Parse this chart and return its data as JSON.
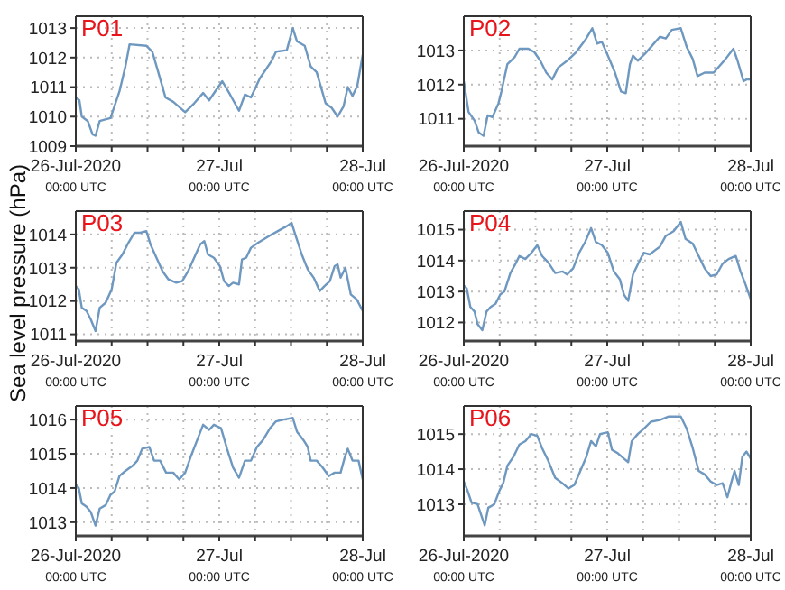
{
  "chart_data": [
    {
      "type": "line",
      "title": "P01",
      "color": "#6e98c0",
      "grid": true,
      "xlim": [
        "2020-07-26T00:00",
        "2020-07-28T00:00"
      ],
      "xticks": [
        {
          "value": "2020-07-26T00:00",
          "label": "26-Jul-2020\n00:00 UTC"
        },
        {
          "value": "2020-07-26T06:00",
          "label": null
        },
        {
          "value": "2020-07-26T12:00",
          "label": null
        },
        {
          "value": "2020-07-26T18:00",
          "label": null
        },
        {
          "value": "2020-07-27T00:00",
          "label": "27-Jul\n00:00 UTC"
        },
        {
          "value": "2020-07-27T06:00",
          "label": null
        },
        {
          "value": "2020-07-27T12:00",
          "label": null
        },
        {
          "value": "2020-07-27T18:00",
          "label": null
        },
        {
          "value": "2020-07-28T00:00",
          "label": "28-Jul\n00:00 UTC"
        }
      ],
      "ylim": [
        1009,
        1013.4
      ],
      "yticks": [
        1009,
        1010,
        1011,
        1012,
        1013
      ],
      "x": [
        "2020-07-26T00:00",
        "2020-07-26T00:36",
        "2020-07-26T01:00",
        "2020-07-26T02:00",
        "2020-07-26T02:48",
        "2020-07-26T03:18",
        "2020-07-26T04:00",
        "2020-07-26T04:48",
        "2020-07-26T05:48",
        "2020-07-26T07:18",
        "2020-07-26T08:18",
        "2020-07-26T09:00",
        "2020-07-26T11:48",
        "2020-07-26T12:48",
        "2020-07-26T13:48",
        "2020-07-26T15:00",
        "2020-07-26T16:18",
        "2020-07-26T18:18",
        "2020-07-26T19:48",
        "2020-07-26T21:18",
        "2020-07-26T22:18",
        "2020-07-26T23:18",
        "2020-07-27T00:30",
        "2020-07-27T01:48",
        "2020-07-27T03:18",
        "2020-07-27T04:18",
        "2020-07-27T05:18",
        "2020-07-27T06:48",
        "2020-07-27T08:48",
        "2020-07-27T09:30",
        "2020-07-27T11:18",
        "2020-07-27T12:18",
        "2020-07-27T13:00",
        "2020-07-27T14:18",
        "2020-07-27T15:18",
        "2020-07-27T16:18",
        "2020-07-27T17:48",
        "2020-07-27T18:48",
        "2020-07-27T19:48",
        "2020-07-27T20:48",
        "2020-07-27T21:30",
        "2020-07-27T22:18",
        "2020-07-27T23:06",
        "2020-07-28T00:00"
      ],
      "values": [
        1010.65,
        1010.55,
        1010.0,
        1009.85,
        1009.4,
        1009.35,
        1009.85,
        1009.9,
        1009.95,
        1010.85,
        1011.7,
        1012.45,
        1012.4,
        1012.2,
        1011.5,
        1010.65,
        1010.5,
        1010.15,
        1010.45,
        1010.8,
        1010.55,
        1010.85,
        1011.2,
        1010.75,
        1010.2,
        1010.75,
        1010.65,
        1011.3,
        1011.9,
        1012.2,
        1012.25,
        1013.0,
        1012.55,
        1012.4,
        1011.7,
        1011.5,
        1010.45,
        1010.3,
        1010.0,
        1010.35,
        1011.0,
        1010.7,
        1011.05,
        1012.1
      ]
    },
    {
      "type": "line",
      "title": "P02",
      "color": "#6e98c0",
      "grid": true,
      "xlim": [
        "2020-07-26T00:00",
        "2020-07-28T00:00"
      ],
      "xticks": [
        {
          "value": "2020-07-26T00:00",
          "label": "26-Jul-2020\n00:00 UTC"
        },
        {
          "value": "2020-07-26T06:00",
          "label": null
        },
        {
          "value": "2020-07-26T12:00",
          "label": null
        },
        {
          "value": "2020-07-26T18:00",
          "label": null
        },
        {
          "value": "2020-07-27T00:00",
          "label": "27-Jul\n00:00 UTC"
        },
        {
          "value": "2020-07-27T06:00",
          "label": null
        },
        {
          "value": "2020-07-27T12:00",
          "label": null
        },
        {
          "value": "2020-07-27T18:00",
          "label": null
        },
        {
          "value": "2020-07-28T00:00",
          "label": "28-Jul\n00:00 UTC"
        }
      ],
      "ylim": [
        1010.2,
        1014
      ],
      "yticks": [
        1011,
        1012,
        1013
      ],
      "x": [
        "2020-07-26T00:00",
        "2020-07-26T00:48",
        "2020-07-26T01:48",
        "2020-07-26T02:30",
        "2020-07-26T03:18",
        "2020-07-26T04:00",
        "2020-07-26T04:48",
        "2020-07-26T05:48",
        "2020-07-26T06:18",
        "2020-07-26T07:18",
        "2020-07-26T08:30",
        "2020-07-26T09:18",
        "2020-07-26T10:48",
        "2020-07-26T11:48",
        "2020-07-26T12:48",
        "2020-07-26T13:48",
        "2020-07-26T14:48",
        "2020-07-26T15:48",
        "2020-07-26T17:18",
        "2020-07-26T18:48",
        "2020-07-26T20:18",
        "2020-07-26T21:30",
        "2020-07-26T22:18",
        "2020-07-26T23:06",
        "2020-07-27T00:06",
        "2020-07-27T01:18",
        "2020-07-27T02:18",
        "2020-07-27T03:06",
        "2020-07-27T03:48",
        "2020-07-27T04:18",
        "2020-07-27T05:06",
        "2020-07-27T06:18",
        "2020-07-27T07:18",
        "2020-07-27T08:48",
        "2020-07-27T09:48",
        "2020-07-27T10:48",
        "2020-07-27T12:18",
        "2020-07-27T13:18",
        "2020-07-27T14:18",
        "2020-07-27T15:06",
        "2020-07-27T16:18",
        "2020-07-27T17:48",
        "2020-07-27T18:48",
        "2020-07-27T19:48",
        "2020-07-27T21:06",
        "2020-07-27T21:48",
        "2020-07-27T22:48",
        "2020-07-27T23:18",
        "2020-07-28T00:00"
      ],
      "values": [
        1012.1,
        1011.2,
        1010.95,
        1010.6,
        1010.5,
        1011.1,
        1011.05,
        1011.45,
        1011.8,
        1012.6,
        1012.8,
        1013.05,
        1013.05,
        1012.95,
        1012.7,
        1012.35,
        1012.15,
        1012.5,
        1012.7,
        1012.95,
        1013.3,
        1013.65,
        1013.2,
        1013.25,
        1012.85,
        1012.35,
        1011.8,
        1011.75,
        1012.6,
        1012.85,
        1012.7,
        1012.9,
        1013.1,
        1013.4,
        1013.35,
        1013.6,
        1013.65,
        1013.1,
        1012.75,
        1012.25,
        1012.35,
        1012.35,
        1012.55,
        1012.75,
        1013.05,
        1012.7,
        1012.1,
        1012.15,
        1012.15
      ]
    },
    {
      "type": "line",
      "title": "P03",
      "ylabel": "Sea level pressure (hPa)",
      "color": "#6e98c0",
      "grid": true,
      "xlim": [
        "2020-07-26T00:00",
        "2020-07-28T00:00"
      ],
      "xticks": [
        {
          "value": "2020-07-26T00:00",
          "label": "26-Jul-2020\n00:00 UTC"
        },
        {
          "value": "2020-07-26T06:00",
          "label": null
        },
        {
          "value": "2020-07-26T12:00",
          "label": null
        },
        {
          "value": "2020-07-26T18:00",
          "label": null
        },
        {
          "value": "2020-07-27T00:00",
          "label": "27-Jul\n00:00 UTC"
        },
        {
          "value": "2020-07-27T06:00",
          "label": null
        },
        {
          "value": "2020-07-27T12:00",
          "label": null
        },
        {
          "value": "2020-07-27T18:00",
          "label": null
        },
        {
          "value": "2020-07-28T00:00",
          "label": "28-Jul\n00:00 UTC"
        }
      ],
      "ylim": [
        1010.8,
        1014.7
      ],
      "yticks": [
        1011,
        1012,
        1013,
        1014
      ],
      "x": [
        "2020-07-26T00:00",
        "2020-07-26T00:30",
        "2020-07-26T01:00",
        "2020-07-26T01:48",
        "2020-07-26T02:30",
        "2020-07-26T03:18",
        "2020-07-26T04:00",
        "2020-07-26T05:00",
        "2020-07-26T06:00",
        "2020-07-26T06:48",
        "2020-07-26T07:48",
        "2020-07-26T08:48",
        "2020-07-26T09:48",
        "2020-07-26T10:48",
        "2020-07-26T11:48",
        "2020-07-26T12:30",
        "2020-07-26T13:30",
        "2020-07-26T14:30",
        "2020-07-26T15:30",
        "2020-07-26T16:48",
        "2020-07-26T17:48",
        "2020-07-26T18:48",
        "2020-07-26T19:48",
        "2020-07-26T20:48",
        "2020-07-26T21:30",
        "2020-07-26T22:06",
        "2020-07-26T23:06",
        "2020-07-27T00:06",
        "2020-07-27T00:48",
        "2020-07-27T01:36",
        "2020-07-27T02:18",
        "2020-07-27T03:18",
        "2020-07-27T03:48",
        "2020-07-27T04:30",
        "2020-07-27T05:18",
        "2020-07-27T06:30",
        "2020-07-27T08:18",
        "2020-07-27T09:48",
        "2020-07-27T11:18",
        "2020-07-27T12:06",
        "2020-07-27T12:48",
        "2020-07-27T13:48",
        "2020-07-27T14:48",
        "2020-07-27T15:48",
        "2020-07-27T16:48",
        "2020-07-27T17:36",
        "2020-07-27T18:30",
        "2020-07-27T19:18",
        "2020-07-27T19:48",
        "2020-07-27T20:18",
        "2020-07-27T21:06",
        "2020-07-27T22:00",
        "2020-07-27T23:00",
        "2020-07-28T00:00"
      ],
      "values": [
        1012.45,
        1012.35,
        1011.8,
        1011.7,
        1011.45,
        1011.1,
        1011.8,
        1011.95,
        1012.35,
        1013.15,
        1013.4,
        1013.75,
        1014.05,
        1014.05,
        1014.1,
        1013.7,
        1013.3,
        1012.9,
        1012.65,
        1012.55,
        1012.6,
        1012.9,
        1013.3,
        1013.7,
        1013.8,
        1013.4,
        1013.3,
        1013.05,
        1012.6,
        1012.45,
        1012.55,
        1012.5,
        1013.25,
        1013.3,
        1013.6,
        1013.75,
        1013.95,
        1014.1,
        1014.25,
        1014.35,
        1013.95,
        1013.4,
        1012.95,
        1012.7,
        1012.3,
        1012.45,
        1012.6,
        1013.05,
        1013.1,
        1012.7,
        1013.0,
        1012.2,
        1012.05,
        1011.7
      ]
    },
    {
      "type": "line",
      "title": "P04",
      "color": "#6e98c0",
      "grid": true,
      "xlim": [
        "2020-07-26T00:00",
        "2020-07-28T00:00"
      ],
      "xticks": [
        {
          "value": "2020-07-26T00:00",
          "label": "26-Jul-2020\n00:00 UTC"
        },
        {
          "value": "2020-07-26T06:00",
          "label": null
        },
        {
          "value": "2020-07-26T12:00",
          "label": null
        },
        {
          "value": "2020-07-26T18:00",
          "label": null
        },
        {
          "value": "2020-07-27T00:00",
          "label": "27-Jul\n00:00 UTC"
        },
        {
          "value": "2020-07-27T06:00",
          "label": null
        },
        {
          "value": "2020-07-27T12:00",
          "label": null
        },
        {
          "value": "2020-07-27T18:00",
          "label": null
        },
        {
          "value": "2020-07-28T00:00",
          "label": "28-Jul\n00:00 UTC"
        }
      ],
      "ylim": [
        1011.4,
        1015.6
      ],
      "yticks": [
        1012,
        1013,
        1014,
        1015
      ],
      "x": [
        "2020-07-26T00:00",
        "2020-07-26T00:30",
        "2020-07-26T01:06",
        "2020-07-26T01:48",
        "2020-07-26T02:18",
        "2020-07-26T03:06",
        "2020-07-26T03:48",
        "2020-07-26T04:30",
        "2020-07-26T05:18",
        "2020-07-26T06:06",
        "2020-07-26T06:48",
        "2020-07-26T07:48",
        "2020-07-26T08:48",
        "2020-07-26T09:18",
        "2020-07-26T10:18",
        "2020-07-26T11:18",
        "2020-07-26T12:18",
        "2020-07-26T13:06",
        "2020-07-26T14:06",
        "2020-07-26T15:18",
        "2020-07-26T16:30",
        "2020-07-26T17:18",
        "2020-07-26T18:18",
        "2020-07-26T19:18",
        "2020-07-26T20:18",
        "2020-07-26T21:18",
        "2020-07-26T22:06",
        "2020-07-26T23:06",
        "2020-07-27T00:06",
        "2020-07-27T01:06",
        "2020-07-27T02:06",
        "2020-07-27T02:48",
        "2020-07-27T03:30",
        "2020-07-27T04:18",
        "2020-07-27T05:18",
        "2020-07-27T06:06",
        "2020-07-27T07:06",
        "2020-07-27T08:06",
        "2020-07-27T08:48",
        "2020-07-27T09:48",
        "2020-07-27T11:06",
        "2020-07-27T12:18",
        "2020-07-27T13:06",
        "2020-07-27T14:18",
        "2020-07-27T15:18",
        "2020-07-27T16:18",
        "2020-07-27T17:18",
        "2020-07-27T18:18",
        "2020-07-27T19:18",
        "2020-07-27T20:18",
        "2020-07-27T21:30",
        "2020-07-27T22:18",
        "2020-07-27T23:06",
        "2020-07-28T00:00"
      ],
      "values": [
        1013.2,
        1013.1,
        1012.5,
        1012.35,
        1011.95,
        1011.75,
        1012.35,
        1012.5,
        1012.6,
        1012.9,
        1013.0,
        1013.6,
        1013.95,
        1014.15,
        1014.05,
        1014.25,
        1014.5,
        1014.15,
        1013.95,
        1013.6,
        1013.65,
        1013.55,
        1013.75,
        1014.25,
        1014.6,
        1015.05,
        1014.6,
        1014.5,
        1014.25,
        1013.65,
        1013.4,
        1012.9,
        1012.7,
        1013.55,
        1013.95,
        1014.25,
        1014.2,
        1014.35,
        1014.45,
        1014.8,
        1014.95,
        1015.25,
        1014.7,
        1014.55,
        1014.15,
        1013.75,
        1013.5,
        1013.55,
        1013.9,
        1014.05,
        1014.15,
        1013.65,
        1013.25,
        1012.75
      ]
    },
    {
      "type": "line",
      "title": "P05",
      "color": "#6e98c0",
      "grid": true,
      "xlim": [
        "2020-07-26T00:00",
        "2020-07-28T00:00"
      ],
      "xticks": [
        {
          "value": "2020-07-26T00:00",
          "label": "26-Jul-2020\n00:00 UTC"
        },
        {
          "value": "2020-07-26T06:00",
          "label": null
        },
        {
          "value": "2020-07-26T12:00",
          "label": null
        },
        {
          "value": "2020-07-26T18:00",
          "label": null
        },
        {
          "value": "2020-07-27T00:00",
          "label": "27-Jul\n00:00 UTC"
        },
        {
          "value": "2020-07-27T06:00",
          "label": null
        },
        {
          "value": "2020-07-27T12:00",
          "label": null
        },
        {
          "value": "2020-07-27T18:00",
          "label": null
        },
        {
          "value": "2020-07-28T00:00",
          "label": "28-Jul\n00:00 UTC"
        }
      ],
      "ylim": [
        1012.6,
        1016.4
      ],
      "yticks": [
        1013,
        1014,
        1015,
        1016
      ],
      "x": [
        "2020-07-26T00:00",
        "2020-07-26T00:30",
        "2020-07-26T01:00",
        "2020-07-26T01:48",
        "2020-07-26T02:30",
        "2020-07-26T03:18",
        "2020-07-26T04:00",
        "2020-07-26T05:00",
        "2020-07-26T05:48",
        "2020-07-26T06:30",
        "2020-07-26T07:18",
        "2020-07-26T08:18",
        "2020-07-26T09:30",
        "2020-07-26T10:18",
        "2020-07-26T11:06",
        "2020-07-26T12:18",
        "2020-07-26T13:06",
        "2020-07-26T14:06",
        "2020-07-26T15:06",
        "2020-07-26T16:18",
        "2020-07-26T17:18",
        "2020-07-26T18:18",
        "2020-07-26T19:18",
        "2020-07-26T20:18",
        "2020-07-26T21:18",
        "2020-07-26T22:18",
        "2020-07-26T23:06",
        "2020-07-27T00:18",
        "2020-07-27T01:18",
        "2020-07-27T02:18",
        "2020-07-27T03:18",
        "2020-07-27T04:18",
        "2020-07-27T05:18",
        "2020-07-27T06:18",
        "2020-07-27T07:18",
        "2020-07-27T08:30",
        "2020-07-27T09:30",
        "2020-07-27T10:48",
        "2020-07-27T12:18",
        "2020-07-27T13:00",
        "2020-07-27T14:06",
        "2020-07-27T14:48",
        "2020-07-27T15:18",
        "2020-07-27T16:18",
        "2020-07-27T17:18",
        "2020-07-27T18:18",
        "2020-07-27T19:18",
        "2020-07-27T20:18",
        "2020-07-27T21:00",
        "2020-07-27T21:30",
        "2020-07-27T22:18",
        "2020-07-27T23:18",
        "2020-07-28T00:00"
      ],
      "values": [
        1014.1,
        1014.0,
        1013.55,
        1013.45,
        1013.3,
        1012.9,
        1013.4,
        1013.5,
        1013.8,
        1013.9,
        1014.35,
        1014.5,
        1014.65,
        1014.8,
        1015.15,
        1015.2,
        1014.8,
        1014.8,
        1014.45,
        1014.45,
        1014.25,
        1014.45,
        1014.95,
        1015.4,
        1015.85,
        1015.7,
        1015.85,
        1015.75,
        1015.15,
        1014.6,
        1014.3,
        1014.8,
        1014.8,
        1015.2,
        1015.4,
        1015.75,
        1015.95,
        1016.0,
        1016.05,
        1015.65,
        1015.4,
        1015.2,
        1014.8,
        1014.8,
        1014.6,
        1014.35,
        1014.45,
        1014.45,
        1014.9,
        1015.15,
        1014.8,
        1014.8,
        1014.25
      ]
    },
    {
      "type": "line",
      "title": "P06",
      "color": "#6e98c0",
      "grid": true,
      "xlim": [
        "2020-07-26T00:00",
        "2020-07-28T00:00"
      ],
      "xticks": [
        {
          "value": "2020-07-26T00:00",
          "label": "26-Jul-2020\n00:00 UTC"
        },
        {
          "value": "2020-07-26T06:00",
          "label": null
        },
        {
          "value": "2020-07-26T12:00",
          "label": null
        },
        {
          "value": "2020-07-26T18:00",
          "label": null
        },
        {
          "value": "2020-07-27T00:00",
          "label": "27-Jul\n00:00 UTC"
        },
        {
          "value": "2020-07-27T06:00",
          "label": null
        },
        {
          "value": "2020-07-27T12:00",
          "label": null
        },
        {
          "value": "2020-07-27T18:00",
          "label": null
        },
        {
          "value": "2020-07-28T00:00",
          "label": "28-Jul\n00:00 UTC"
        }
      ],
      "ylim": [
        1012.1,
        1015.8
      ],
      "yticks": [
        1013,
        1014,
        1015
      ],
      "x": [
        "2020-07-26T00:00",
        "2020-07-26T00:36",
        "2020-07-26T01:18",
        "2020-07-26T02:18",
        "2020-07-26T03:00",
        "2020-07-26T03:30",
        "2020-07-26T04:06",
        "2020-07-26T05:06",
        "2020-07-26T06:00",
        "2020-07-26T06:36",
        "2020-07-26T07:18",
        "2020-07-26T08:18",
        "2020-07-26T09:18",
        "2020-07-26T10:18",
        "2020-07-26T11:18",
        "2020-07-26T12:18",
        "2020-07-26T13:06",
        "2020-07-26T14:06",
        "2020-07-26T15:18",
        "2020-07-26T16:30",
        "2020-07-26T17:30",
        "2020-07-26T18:30",
        "2020-07-26T19:30",
        "2020-07-26T20:30",
        "2020-07-26T21:18",
        "2020-07-26T22:06",
        "2020-07-26T22:48",
        "2020-07-27T00:06",
        "2020-07-27T00:48",
        "2020-07-27T01:48",
        "2020-07-27T02:48",
        "2020-07-27T03:30",
        "2020-07-27T04:06",
        "2020-07-27T05:06",
        "2020-07-27T06:06",
        "2020-07-27T07:18",
        "2020-07-27T08:48",
        "2020-07-27T10:18",
        "2020-07-27T11:18",
        "2020-07-27T12:18",
        "2020-07-27T13:18",
        "2020-07-27T14:18",
        "2020-07-27T15:18",
        "2020-07-27T16:18",
        "2020-07-27T17:18",
        "2020-07-27T18:18",
        "2020-07-27T19:18",
        "2020-07-27T20:06",
        "2020-07-27T20:48",
        "2020-07-27T21:18",
        "2020-07-27T22:00",
        "2020-07-27T22:36",
        "2020-07-27T23:18",
        "2020-07-28T00:00"
      ],
      "values": [
        1013.65,
        1013.4,
        1013.05,
        1013.0,
        1012.65,
        1012.4,
        1012.9,
        1013.0,
        1013.4,
        1013.6,
        1014.1,
        1014.35,
        1014.7,
        1014.8,
        1015.0,
        1014.95,
        1014.6,
        1014.25,
        1013.75,
        1013.6,
        1013.45,
        1013.55,
        1013.95,
        1014.35,
        1014.8,
        1014.65,
        1015.0,
        1015.05,
        1014.55,
        1014.45,
        1014.3,
        1014.2,
        1014.8,
        1015.0,
        1015.15,
        1015.35,
        1015.4,
        1015.5,
        1015.5,
        1015.5,
        1015.15,
        1014.6,
        1013.95,
        1013.85,
        1013.65,
        1013.55,
        1013.6,
        1013.2,
        1013.65,
        1013.95,
        1013.55,
        1014.35,
        1014.5,
        1014.3
      ]
    }
  ]
}
